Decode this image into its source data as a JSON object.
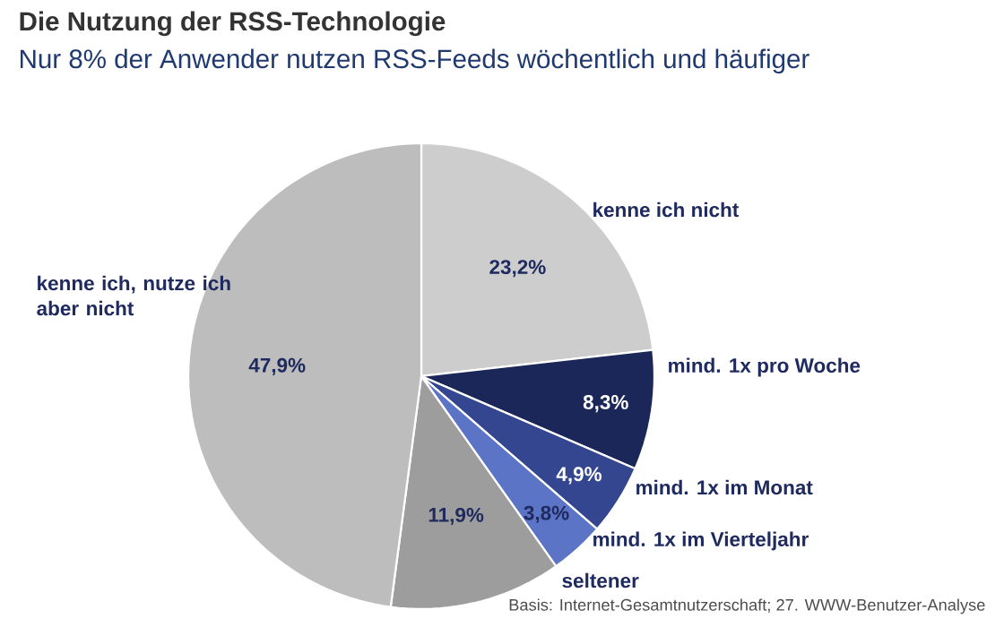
{
  "chart_data": {
    "type": "pie",
    "title": "Die Nutzung der RSS-Technologie",
    "subtitle": "Nur 8% der Anwender nutzen RSS-Feeds wöchentlich und häufiger",
    "categories": [
      "kenne ich nicht",
      "mind. 1x pro Woche",
      "mind. 1x im Monat",
      "mind. 1x im Vierteljahr",
      "seltener",
      "kenne ich, nutze ich aber nicht"
    ],
    "values": [
      23.2,
      8.3,
      4.9,
      3.8,
      11.9,
      47.9
    ],
    "colors": [
      "#cdcdcd",
      "#1c2759",
      "#34468f",
      "#5b74c6",
      "#9d9d9d",
      "#bdbdbd"
    ],
    "value_labels": [
      "23,2%",
      "8,3%",
      "4,9%",
      "3,8%",
      "11,9%",
      "47,9%"
    ],
    "annotations": [
      "Basis: Internet-Gesamtnutzerschaft; 27. WWW-Benutzer-Analyse"
    ]
  }
}
